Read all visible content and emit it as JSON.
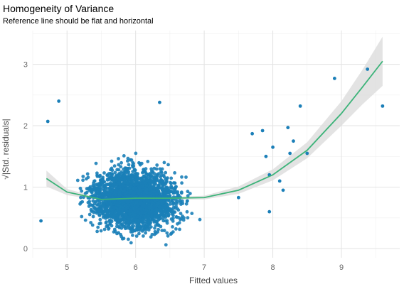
{
  "chart_data": {
    "type": "scatter",
    "title": "Homogeneity of Variance",
    "subtitle": "Reference line should be flat and horizontal",
    "xlabel": "Fitted values",
    "ylabel": "√|Std. residuals|",
    "xlim": [
      4.5,
      9.85
    ],
    "ylim": [
      -0.15,
      3.55
    ],
    "x_ticks": [
      5,
      6,
      7,
      8,
      9
    ],
    "y_ticks": [
      0,
      1,
      2,
      3
    ],
    "grid": true,
    "legend": "none",
    "point_color": "#1b7fb8",
    "line_color": "#3cb379",
    "band_color": "#d9d9d9",
    "cluster": {
      "x_range": [
        4.7,
        7.3
      ],
      "x_center": 6.0,
      "y_range": [
        0.0,
        2.4
      ],
      "y_center": 0.8
    },
    "outlier_points": [
      {
        "x": 4.62,
        "y": 0.45
      },
      {
        "x": 4.72,
        "y": 2.07
      },
      {
        "x": 4.88,
        "y": 2.4
      },
      {
        "x": 6.35,
        "y": 2.38
      },
      {
        "x": 7.5,
        "y": 0.83
      },
      {
        "x": 7.7,
        "y": 1.87
      },
      {
        "x": 7.85,
        "y": 1.92
      },
      {
        "x": 7.9,
        "y": 1.5
      },
      {
        "x": 7.95,
        "y": 1.2
      },
      {
        "x": 8.0,
        "y": 1.65
      },
      {
        "x": 8.1,
        "y": 1.1
      },
      {
        "x": 8.15,
        "y": 0.95
      },
      {
        "x": 8.22,
        "y": 1.97
      },
      {
        "x": 8.25,
        "y": 1.55
      },
      {
        "x": 8.3,
        "y": 1.75
      },
      {
        "x": 8.4,
        "y": 2.32
      },
      {
        "x": 8.5,
        "y": 1.55
      },
      {
        "x": 8.9,
        "y": 2.77
      },
      {
        "x": 9.38,
        "y": 2.92
      },
      {
        "x": 9.6,
        "y": 2.32
      },
      {
        "x": 7.95,
        "y": 0.6
      }
    ],
    "smooth_line": {
      "x": [
        4.7,
        5.0,
        5.5,
        6.0,
        6.5,
        7.0,
        7.5,
        8.0,
        8.5,
        9.0,
        9.3,
        9.6
      ],
      "y": [
        1.14,
        0.92,
        0.8,
        0.82,
        0.82,
        0.83,
        0.95,
        1.2,
        1.6,
        2.2,
        2.62,
        3.05
      ],
      "band_half_width": [
        0.13,
        0.05,
        0.02,
        0.02,
        0.02,
        0.03,
        0.06,
        0.09,
        0.13,
        0.2,
        0.28,
        0.4
      ]
    }
  }
}
